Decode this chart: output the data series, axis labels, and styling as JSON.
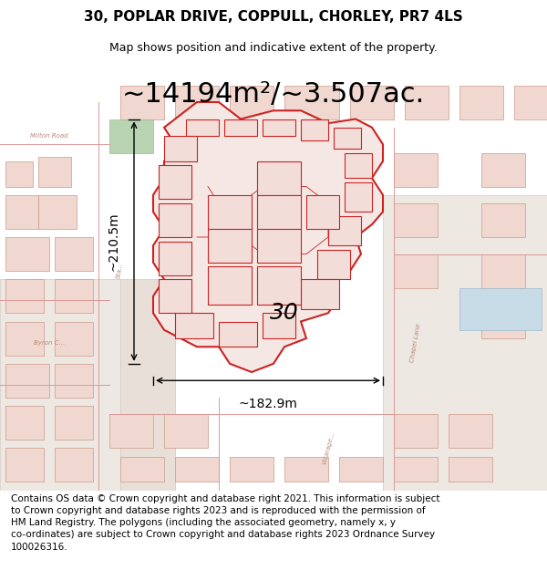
{
  "title": "30, POPLAR DRIVE, COPPULL, CHORLEY, PR7 4LS",
  "subtitle": "Map shows position and indicative extent of the property.",
  "area_text": "~14194m²/~3.507ac.",
  "dim_vertical": "~210.5m",
  "dim_horizontal": "~182.9m",
  "label_30": "30",
  "footer_line1": "Contains OS data © Crown copyright and database right 2021. This information is subject",
  "footer_line2": "to Crown copyright and database rights 2023 and is reproduced with the permission of",
  "footer_line3": "HM Land Registry. The polygons (including the associated geometry, namely x, y",
  "footer_line4": "co-ordinates) are subject to Crown copyright and database rights 2023 Ordnance Survey",
  "footer_line5": "100026316.",
  "bg_color": "#f5f0eb",
  "map_bg": "#f0ece6",
  "highlight_color": "#e8c8c0",
  "road_color": "#e8c8c0",
  "red_outline": "#cc2222",
  "green_area": "#88bb88",
  "blue_area": "#aaccdd",
  "title_fontsize": 11,
  "subtitle_fontsize": 9,
  "area_fontsize": 22,
  "dim_fontsize": 10,
  "label_fontsize": 18,
  "footer_fontsize": 7.5
}
